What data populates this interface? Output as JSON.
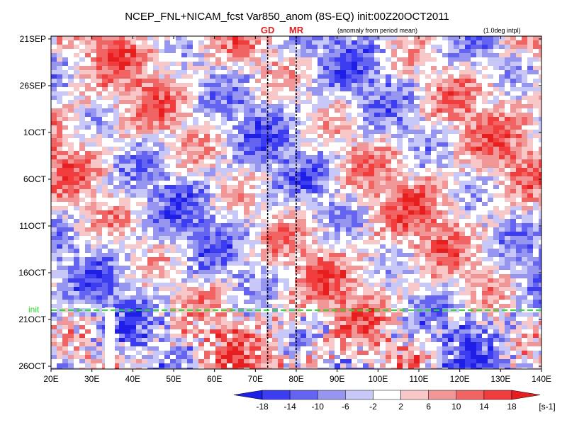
{
  "chart_data": {
    "type": "heatmap",
    "title": "NCEP_FNL+NICAM_fcst Var850_anom (8S-EQ) init:00Z20OCT2011",
    "note_left": "(anomaly from period mean)",
    "note_right": "(1.0deg intpl)",
    "x_ticks": [
      {
        "label": "20E",
        "value": 20
      },
      {
        "label": "30E",
        "value": 30
      },
      {
        "label": "40E",
        "value": 40
      },
      {
        "label": "50E",
        "value": 50
      },
      {
        "label": "60E",
        "value": 60
      },
      {
        "label": "70E",
        "value": 70
      },
      {
        "label": "80E",
        "value": 80
      },
      {
        "label": "90E",
        "value": 90
      },
      {
        "label": "100E",
        "value": 100
      },
      {
        "label": "110E",
        "value": 110
      },
      {
        "label": "120E",
        "value": 120
      },
      {
        "label": "130E",
        "value": 130
      },
      {
        "label": "140E",
        "value": 140
      }
    ],
    "y_ticks": [
      {
        "label": "21SEP",
        "value": 0
      },
      {
        "label": "26SEP",
        "value": 5
      },
      {
        "label": "1OCT",
        "value": 10
      },
      {
        "label": "6OCT",
        "value": 15
      },
      {
        "label": "11OCT",
        "value": 20
      },
      {
        "label": "16OCT",
        "value": 25
      },
      {
        "label": "21OCT",
        "value": 30
      },
      {
        "label": "26OCT",
        "value": 35
      }
    ],
    "xlim": [
      20,
      140
    ],
    "ylim_days": [
      -0.3,
      35.3
    ],
    "markers": [
      {
        "label": "GD",
        "lon": 73
      },
      {
        "label": "MR",
        "lon": 80
      }
    ],
    "init_line": {
      "label": "init",
      "day": 29
    },
    "colorbar": {
      "levels": [
        "-18",
        "-14",
        "-10",
        "-6",
        "-2",
        "2",
        "6",
        "10",
        "14",
        "18"
      ],
      "colors": [
        "#1e1ee6",
        "#3c3cf0",
        "#6464f0",
        "#9696f0",
        "#c8c8f8",
        "#ffffff",
        "#f8c8c8",
        "#f09696",
        "#f06464",
        "#f03c3c",
        "#e61e1e"
      ],
      "unit": "[s-1]"
    },
    "colors": {
      "init": "#22dd22",
      "marker": "#e02020"
    }
  }
}
